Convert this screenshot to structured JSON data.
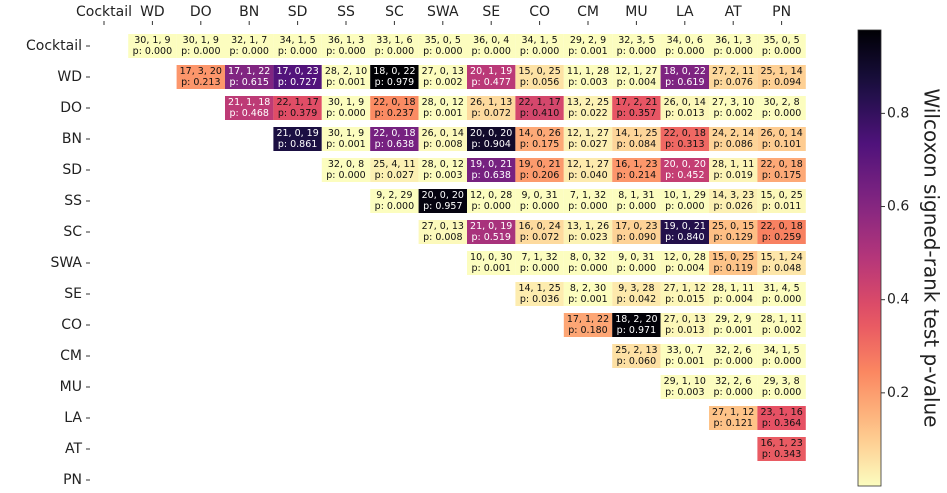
{
  "chart_data": {
    "type": "heatmap",
    "categories": [
      "Cocktail",
      "WD",
      "DO",
      "BN",
      "SD",
      "SS",
      "SC",
      "SWA",
      "SE",
      "CO",
      "CM",
      "MU",
      "LA",
      "AT",
      "PN"
    ],
    "counts": [
      [
        "30, 1, 9",
        "30, 1, 9",
        "32, 1, 7",
        "34, 1, 5",
        "36, 1, 3",
        "33, 1, 6",
        "35, 0, 5",
        "36, 0, 4",
        "34, 1, 5",
        "29, 2, 9",
        "32, 3, 5",
        "34, 0, 6",
        "36, 1, 3",
        "35, 0, 5"
      ],
      [
        "17, 3, 20",
        "17, 1, 22",
        "17, 0, 23",
        "28, 2, 10",
        "18, 0, 22",
        "27, 0, 13",
        "20, 1, 19",
        "15, 0, 25",
        "11, 1, 28",
        "12, 1, 27",
        "18, 0, 22",
        "27, 2, 11",
        "25, 1, 14"
      ],
      [
        "21, 1, 18",
        "22, 1, 17",
        "30, 1, 9",
        "22, 0, 18",
        "28, 0, 12",
        "26, 1, 13",
        "22, 1, 17",
        "13, 2, 25",
        "17, 2, 21",
        "26, 0, 14",
        "27, 3, 10",
        "30, 2, 8"
      ],
      [
        "21, 0, 19",
        "30, 1, 9",
        "22, 0, 18",
        "26, 0, 14",
        "20, 0, 20",
        "14, 0, 26",
        "12, 1, 27",
        "14, 1, 25",
        "22, 0, 18",
        "24, 2, 14",
        "26, 0, 14"
      ],
      [
        "32, 0, 8",
        "25, 4, 11",
        "28, 0, 12",
        "19, 0, 21",
        "19, 0, 21",
        "12, 1, 27",
        "16, 1, 23",
        "20, 0, 20",
        "28, 1, 11",
        "22, 0, 18"
      ],
      [
        "9, 2, 29",
        "20, 0, 20",
        "12, 0, 28",
        "9, 0, 31",
        "7, 1, 32",
        "8, 1, 31",
        "10, 1, 29",
        "14, 3, 23",
        "15, 0, 25"
      ],
      [
        "27, 0, 13",
        "21, 0, 19",
        "16, 0, 24",
        "13, 1, 26",
        "17, 0, 23",
        "19, 0, 21",
        "25, 0, 15",
        "22, 0, 18"
      ],
      [
        "10, 0, 30",
        "7, 1, 32",
        "8, 0, 32",
        "9, 0, 31",
        "12, 0, 28",
        "15, 0, 25",
        "15, 1, 24"
      ],
      [
        "14, 1, 25",
        "8, 2, 30",
        "9, 3, 28",
        "27, 1, 12",
        "28, 1, 11",
        "31, 4, 5"
      ],
      [
        "17, 1, 22",
        "18, 2, 20",
        "27, 0, 13",
        "29, 2, 9",
        "28, 1, 11"
      ],
      [
        "25, 2, 13",
        "33, 0, 7",
        "32, 2, 6",
        "34, 1, 5"
      ],
      [
        "29, 1, 10",
        "32, 2, 6",
        "29, 3, 8"
      ],
      [
        "27, 1, 12",
        "23, 1, 16"
      ],
      [
        "16, 1, 23"
      ],
      []
    ],
    "values": [
      [
        0.0,
        0.0,
        0.0,
        0.0,
        0.0,
        0.0,
        0.0,
        0.0,
        0.0,
        0.001,
        0.0,
        0.0,
        0.0,
        0.0
      ],
      [
        0.213,
        0.615,
        0.727,
        0.001,
        0.979,
        0.002,
        0.477,
        0.056,
        0.003,
        0.004,
        0.619,
        0.076,
        0.094
      ],
      [
        0.468,
        0.379,
        0.0,
        0.237,
        0.001,
        0.072,
        0.41,
        0.022,
        0.357,
        0.013,
        0.002,
        0.0
      ],
      [
        0.861,
        0.001,
        0.638,
        0.008,
        0.904,
        0.175,
        0.027,
        0.084,
        0.313,
        0.086,
        0.101
      ],
      [
        0.0,
        0.027,
        0.003,
        0.638,
        0.206,
        0.04,
        0.214,
        0.452,
        0.019,
        0.175
      ],
      [
        0.0,
        0.957,
        0.0,
        0.0,
        0.0,
        0.0,
        0.0,
        0.026,
        0.011
      ],
      [
        0.008,
        0.519,
        0.072,
        0.023,
        0.09,
        0.84,
        0.129,
        0.259
      ],
      [
        0.001,
        0.0,
        0.0,
        0.0,
        0.004,
        0.119,
        0.048
      ],
      [
        0.036,
        0.001,
        0.042,
        0.015,
        0.004,
        0.0
      ],
      [
        0.18,
        0.971,
        0.013,
        0.001,
        0.002
      ],
      [
        0.06,
        0.001,
        0.0,
        0.0
      ],
      [
        0.003,
        0.0,
        0.0
      ],
      [
        0.121,
        0.364
      ],
      [
        0.343
      ],
      []
    ],
    "value_labels": [
      [
        "p: 0.000",
        "p: 0.000",
        "p: 0.000",
        "p: 0.000",
        "p: 0.000",
        "p: 0.000",
        "p: 0.000",
        "p: 0.000",
        "p: 0.000",
        "p: 0.001",
        "p: 0.000",
        "p: 0.000",
        "p: 0.000",
        "p: 0.000"
      ],
      [
        "p: 0.213",
        "p: 0.615",
        "p: 0.727",
        "p: 0.001",
        "p: 0.979",
        "p: 0.002",
        "p: 0.477",
        "p: 0.056",
        "p: 0.003",
        "p: 0.004",
        "p: 0.619",
        "p: 0.076",
        "p: 0.094"
      ],
      [
        "p: 0.468",
        "p: 0.379",
        "p: 0.000",
        "p: 0.237",
        "p: 0.001",
        "p: 0.072",
        "p: 0.410",
        "p: 0.022",
        "p: 0.357",
        "p: 0.013",
        "p: 0.002",
        "p: 0.000"
      ],
      [
        "p: 0.861",
        "p: 0.001",
        "p: 0.638",
        "p: 0.008",
        "p: 0.904",
        "p: 0.175",
        "p: 0.027",
        "p: 0.084",
        "p: 0.313",
        "p: 0.086",
        "p: 0.101"
      ],
      [
        "p: 0.000",
        "p: 0.027",
        "p: 0.003",
        "p: 0.638",
        "p: 0.206",
        "p: 0.040",
        "p: 0.214",
        "p: 0.452",
        "p: 0.019",
        "p: 0.175"
      ],
      [
        "p: 0.000",
        "p: 0.957",
        "p: 0.000",
        "p: 0.000",
        "p: 0.000",
        "p: 0.000",
        "p: 0.000",
        "p: 0.026",
        "p: 0.011"
      ],
      [
        "p: 0.008",
        "p: 0.519",
        "p: 0.072",
        "p: 0.023",
        "p: 0.090",
        "p: 0.840",
        "p: 0.129",
        "p: 0.259"
      ],
      [
        "p: 0.001",
        "p: 0.000",
        "p: 0.000",
        "p: 0.000",
        "p: 0.004",
        "p: 0.119",
        "p: 0.048"
      ],
      [
        "p: 0.036",
        "p: 0.001",
        "p: 0.042",
        "p: 0.015",
        "p: 0.004",
        "p: 0.000"
      ],
      [
        "p: 0.180",
        "p: 0.971",
        "p: 0.013",
        "p: 0.001",
        "p: 0.002"
      ],
      [
        "p: 0.060",
        "p: 0.001",
        "p: 0.000",
        "p: 0.000"
      ],
      [
        "p: 0.003",
        "p: 0.000",
        "p: 0.000"
      ],
      [
        "p: 0.121",
        "p: 0.364"
      ],
      [
        "p: 0.343"
      ],
      []
    ],
    "colormap": "magma_r",
    "clim": [
      0,
      0.979
    ],
    "colorbar_label": "Wilcoxon signed-rank test p-value",
    "colorbar_ticks": [
      0.2,
      0.4,
      0.6,
      0.8
    ]
  }
}
